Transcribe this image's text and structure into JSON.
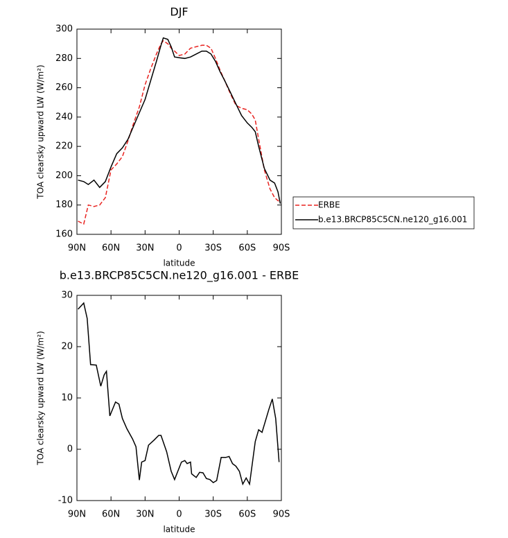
{
  "chart_data": [
    {
      "type": "line",
      "title": "DJF",
      "xlabel": "latitude",
      "ylabel": "TOA clearsky upward LW (W/m²)",
      "xlim": [
        90,
        -90
      ],
      "ylim": [
        160,
        300
      ],
      "xticks": [
        {
          "value": 90,
          "label": "90N"
        },
        {
          "value": 60,
          "label": "60N"
        },
        {
          "value": 30,
          "label": "30N"
        },
        0,
        {
          "value": -30,
          "label": "30S"
        },
        {
          "value": -60,
          "label": "60S"
        },
        {
          "value": -90,
          "label": "90S"
        }
      ],
      "yticks": [
        160,
        180,
        200,
        220,
        240,
        260,
        280,
        300
      ],
      "legend": "outside-right",
      "x": [
        89,
        84,
        80,
        75,
        70,
        65,
        60,
        55,
        50,
        45,
        40,
        35,
        30,
        25,
        20,
        16,
        14,
        10,
        7,
        4,
        0,
        -5,
        -10,
        -15,
        -20,
        -24,
        -28,
        -32,
        -36,
        -40,
        -45,
        -50,
        -55,
        -60,
        -64,
        -67,
        -70,
        -75,
        -80,
        -84,
        -87,
        -89
      ],
      "series": [
        {
          "name": "ERBE",
          "color": "#e8221f",
          "line_style": "dashed",
          "values": [
            169,
            167,
            180,
            179,
            180,
            185,
            204,
            208,
            213,
            224,
            236,
            247,
            262,
            273,
            283,
            290,
            292,
            290,
            287,
            285,
            282,
            283,
            287,
            288,
            289,
            289,
            287,
            280,
            272,
            265,
            256,
            248,
            246,
            245,
            242,
            238,
            225,
            204,
            191,
            185,
            183,
            182
          ]
        },
        {
          "name": "b.e13.BRCP85C5CN.ne120_g16.001",
          "color": "#000000",
          "line_style": "solid",
          "values": [
            197,
            196,
            194,
            197,
            192,
            196,
            206,
            215,
            219,
            225,
            234,
            243,
            252,
            265,
            278,
            289,
            294,
            293,
            288,
            281,
            280.5,
            280,
            281,
            283,
            285,
            285,
            283,
            278,
            271,
            265,
            257,
            249,
            241,
            236,
            233,
            230,
            220,
            205,
            197,
            195,
            189,
            181
          ]
        }
      ]
    },
    {
      "type": "line",
      "title": "b.e13.BRCP85C5CN.ne120_g16.001 - ERBE",
      "xlabel": "latitude",
      "ylabel": "TOA clearsky upward LW (W/m²)",
      "xlim": [
        90,
        -90
      ],
      "ylim": [
        -10,
        30
      ],
      "xticks": [
        {
          "value": 90,
          "label": "90N"
        },
        {
          "value": 60,
          "label": "60N"
        },
        {
          "value": 30,
          "label": "30N"
        },
        0,
        {
          "value": -30,
          "label": "30S"
        },
        {
          "value": -60,
          "label": "60S"
        },
        {
          "value": -90,
          "label": "90S"
        }
      ],
      "yticks": [
        -10,
        0,
        10,
        20,
        30
      ],
      "color": "#000000",
      "x": [
        89,
        84,
        81,
        78,
        73,
        69,
        66,
        64,
        61,
        56,
        53,
        50,
        46,
        41,
        38,
        35,
        33,
        30,
        27,
        22,
        18,
        16,
        11,
        7,
        4,
        -2,
        -5,
        -7,
        -10,
        -11,
        -15,
        -18,
        -21,
        -24,
        -27,
        -30,
        -33,
        -37,
        -41,
        -44,
        -47,
        -50,
        -53,
        -56,
        -59,
        -62,
        -67,
        -70,
        -73,
        -79,
        -82,
        -85,
        -88
      ],
      "values": [
        27.3,
        28.5,
        25.5,
        16.5,
        16.4,
        12.3,
        14.5,
        15.2,
        6.5,
        9.2,
        8.8,
        6,
        4,
        2,
        0.5,
        -6,
        -2.5,
        -2.2,
        0.8,
        1.8,
        2.7,
        2.7,
        -0.5,
        -4.3,
        -5.9,
        -2.5,
        -2.2,
        -2.8,
        -2.5,
        -4.8,
        -5.5,
        -4.5,
        -4.6,
        -5.7,
        -5.9,
        -6.5,
        -6.1,
        -1.6,
        -1.6,
        -1.4,
        -2.8,
        -3.3,
        -4.3,
        -6.8,
        -5.6,
        -6.8,
        1.5,
        3.8,
        3.3,
        7.8,
        9.8,
        6,
        -2.5
      ]
    }
  ]
}
